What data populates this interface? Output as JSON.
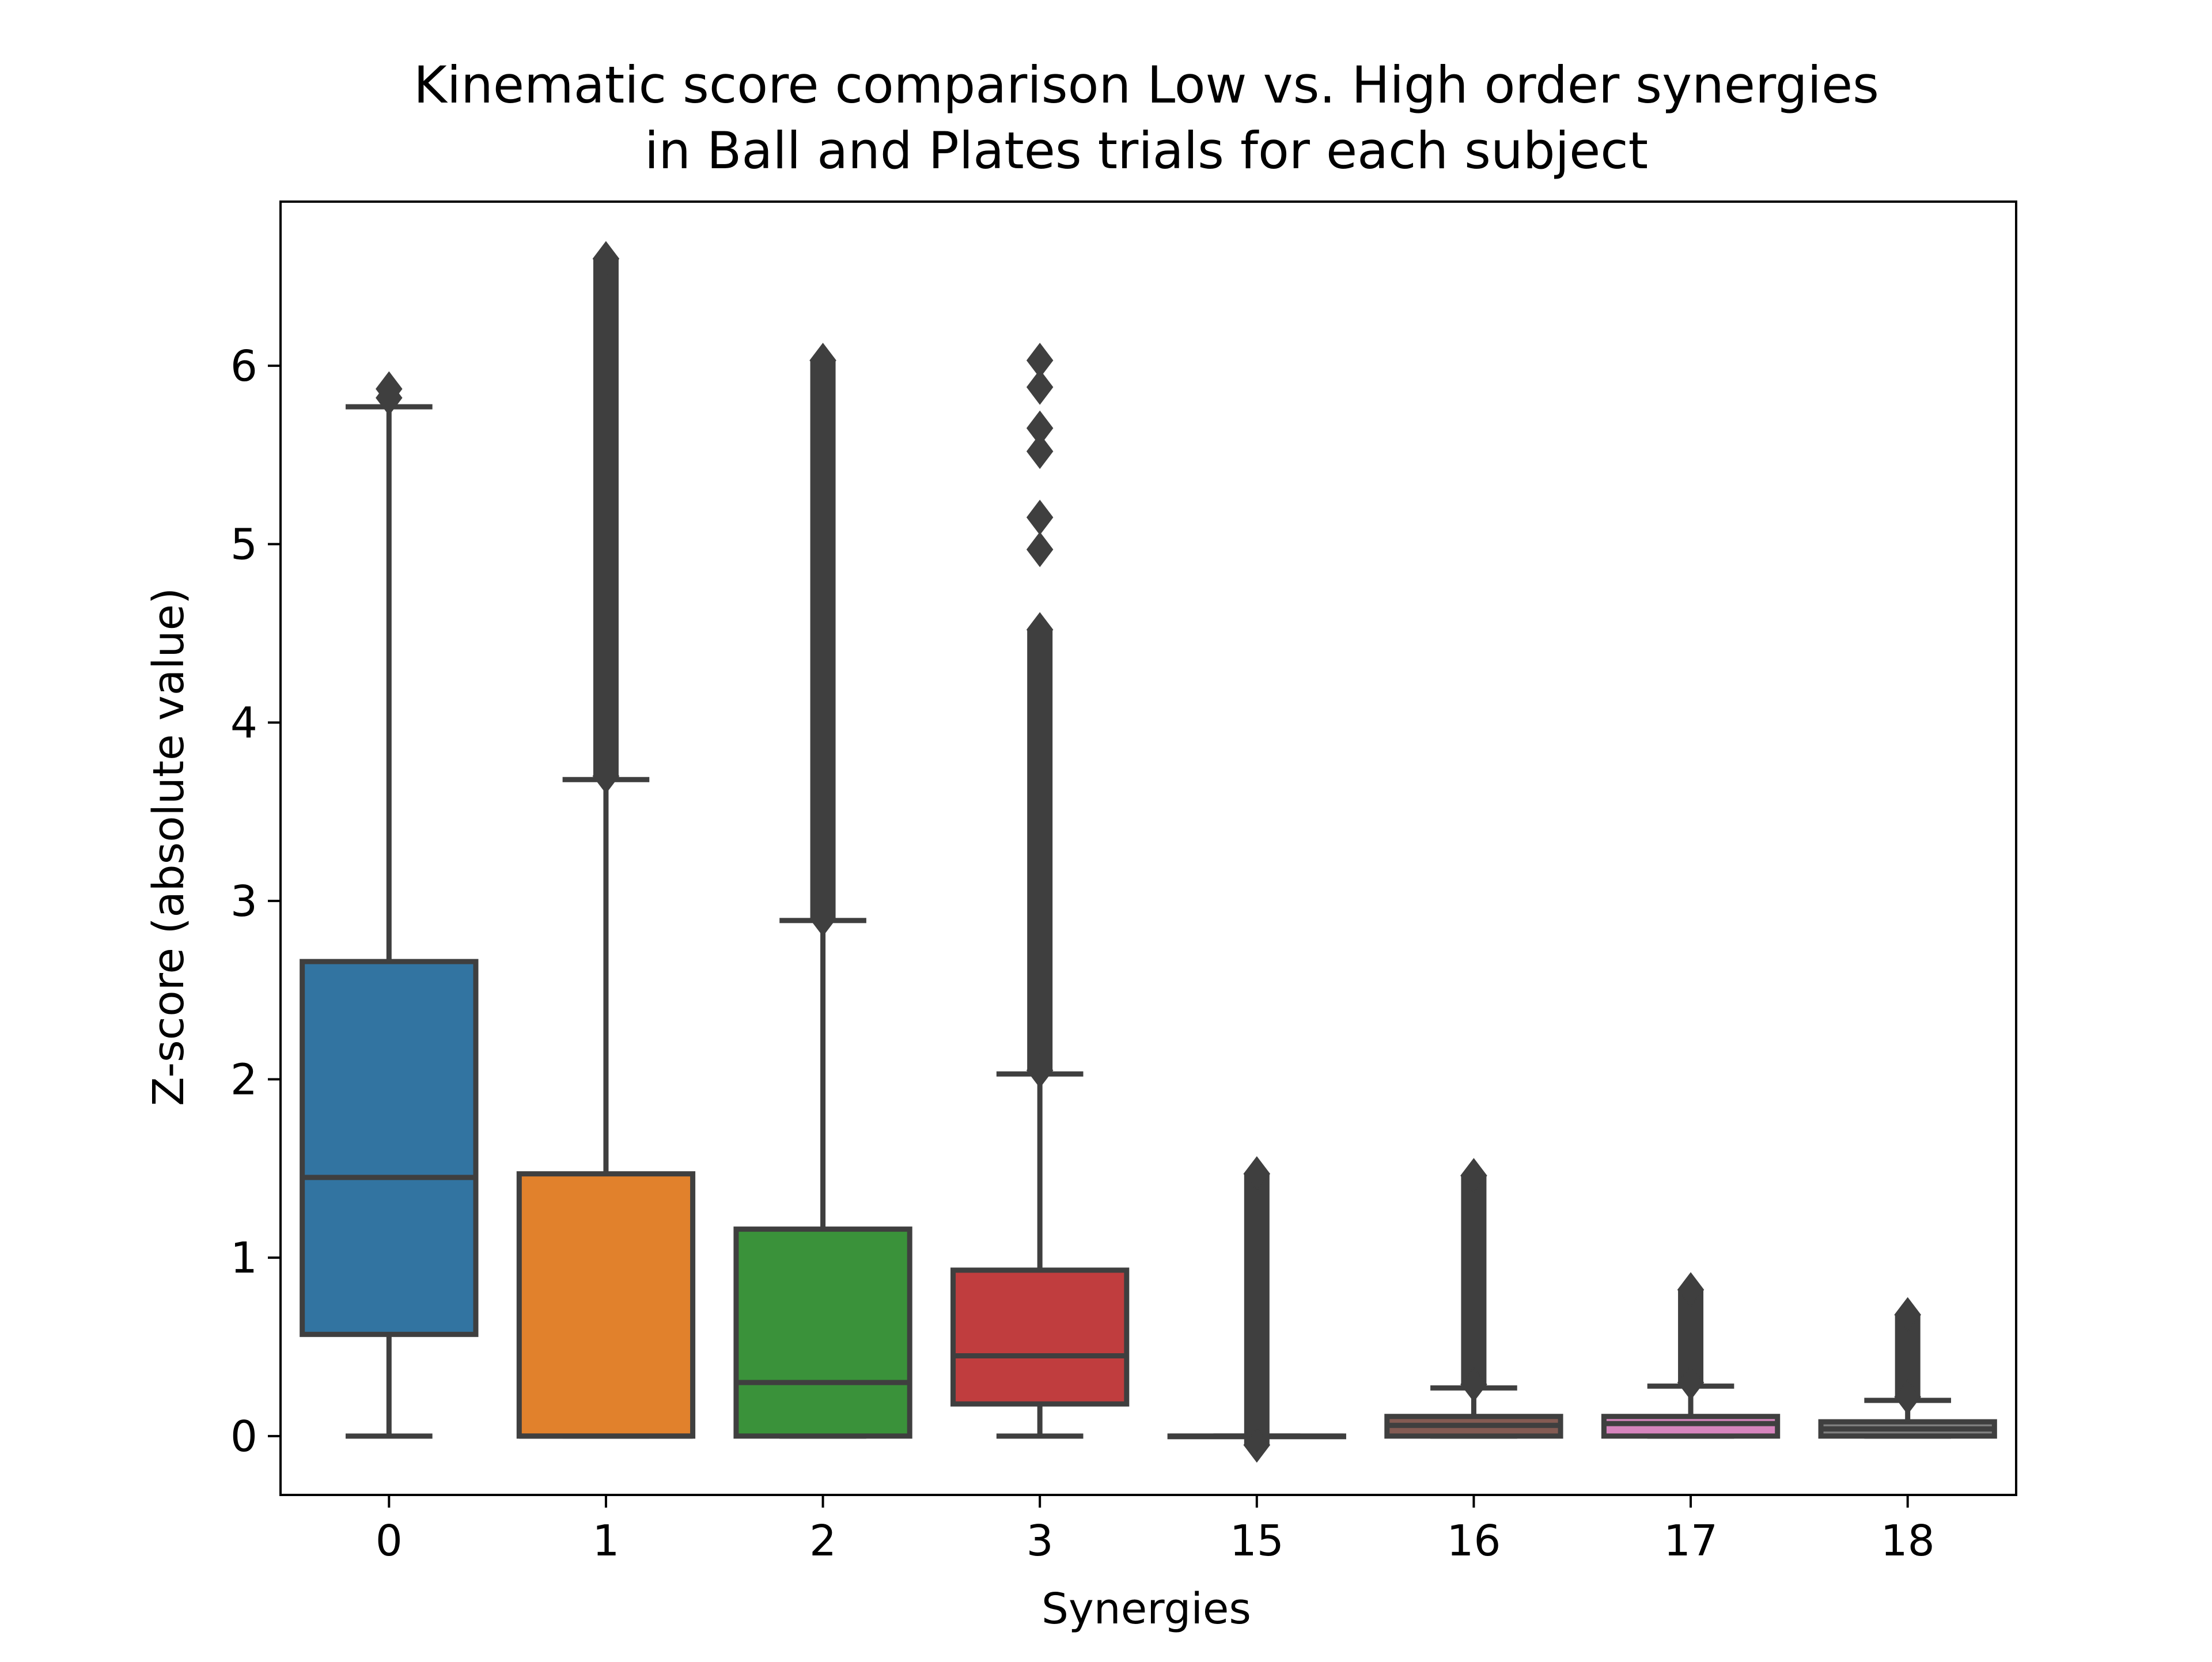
{
  "chart_data": {
    "type": "box",
    "title": [
      "Kinematic score comparison Low vs. High order synergies",
      "in Ball and Plates trials for each subject"
    ],
    "xlabel": "Synergies",
    "ylabel": "Z-score (absolute value)",
    "ylim": [
      -0.33,
      6.92
    ],
    "yticks": [
      0,
      1,
      2,
      3,
      4,
      5,
      6
    ],
    "grid": false,
    "categories": [
      "0",
      "1",
      "2",
      "3",
      "15",
      "16",
      "17",
      "18"
    ],
    "boxes": [
      {
        "category": "0",
        "color": "#3274a1",
        "q1": 0.57,
        "median": 1.45,
        "q3": 2.66,
        "whisker_low": 0.0,
        "whisker_high": 5.77,
        "outliers": [
          5.82,
          5.87
        ],
        "outlier_range": null
      },
      {
        "category": "1",
        "color": "#e1812c",
        "q1": 0.0,
        "median": 0.0,
        "q3": 1.47,
        "whisker_low": 0.0,
        "whisker_high": 3.68,
        "outliers": [],
        "outlier_range": [
          3.7,
          6.6
        ]
      },
      {
        "category": "2",
        "color": "#3a923a",
        "q1": 0.0,
        "median": 0.3,
        "q3": 1.16,
        "whisker_low": 0.0,
        "whisker_high": 2.89,
        "outliers": [],
        "outlier_range": [
          2.9,
          6.03
        ]
      },
      {
        "category": "3",
        "color": "#c03d3e",
        "q1": 0.18,
        "median": 0.45,
        "q3": 0.93,
        "whisker_low": 0.0,
        "whisker_high": 2.03,
        "outliers": [
          4.97,
          5.15,
          5.52,
          5.65,
          5.88,
          6.03
        ],
        "outlier_range": [
          2.05,
          4.52
        ]
      },
      {
        "category": "15",
        "color": "#9372b2",
        "q1": 0.0,
        "median": 0.0,
        "q3": 0.0,
        "whisker_low": 0.0,
        "whisker_high": 0.0,
        "outliers": [],
        "outlier_range": [
          -0.05,
          1.47
        ]
      },
      {
        "category": "16",
        "color": "#845b53",
        "q1": 0.0,
        "median": 0.06,
        "q3": 0.11,
        "whisker_low": 0.0,
        "whisker_high": 0.27,
        "outliers": [],
        "outlier_range": [
          0.29,
          1.46
        ]
      },
      {
        "category": "17",
        "color": "#d684bd",
        "q1": 0.0,
        "median": 0.07,
        "q3": 0.11,
        "whisker_low": 0.0,
        "whisker_high": 0.28,
        "outliers": [],
        "outlier_range": [
          0.3,
          0.82
        ]
      },
      {
        "category": "18",
        "color": "#7f7f7f",
        "q1": 0.0,
        "median": 0.04,
        "q3": 0.08,
        "whisker_low": 0.0,
        "whisker_high": 0.2,
        "outliers": [],
        "outlier_range": [
          0.22,
          0.68
        ]
      }
    ]
  }
}
